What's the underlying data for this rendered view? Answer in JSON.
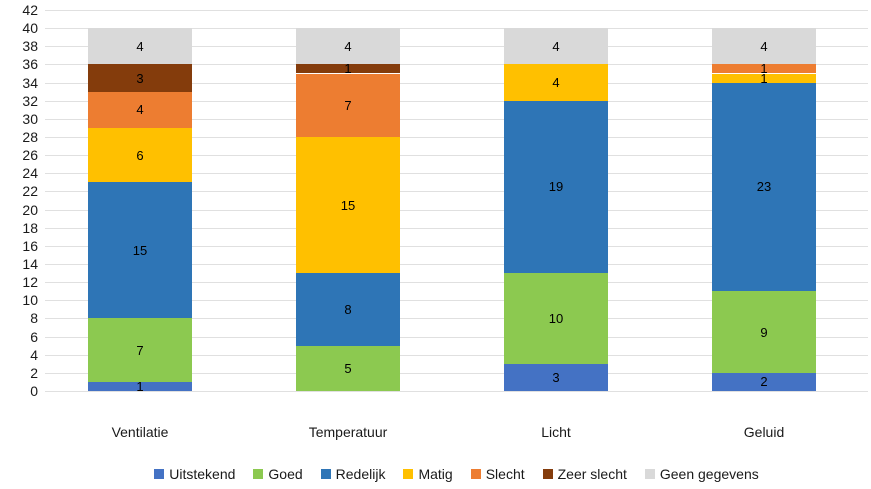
{
  "chart_data": {
    "type": "bar",
    "stacked": true,
    "title": "",
    "xlabel": "",
    "ylabel": "",
    "ylim": [
      0,
      42
    ],
    "yticks": [
      0,
      2,
      4,
      6,
      8,
      10,
      12,
      14,
      16,
      18,
      20,
      22,
      24,
      26,
      28,
      30,
      32,
      34,
      36,
      38,
      40,
      42
    ],
    "grid": true,
    "legend_position": "bottom",
    "categories": [
      "Ventilatie",
      "Temperatuur",
      "Licht",
      "Geluid"
    ],
    "series": [
      {
        "name": "Uitstekend",
        "color": "#4472C4",
        "values": [
          1,
          0,
          3,
          2
        ]
      },
      {
        "name": "Goed",
        "color": "#8CC950",
        "values": [
          7,
          5,
          10,
          9
        ]
      },
      {
        "name": "Redelijk",
        "color": "#2E75B6",
        "values": [
          15,
          8,
          19,
          23
        ]
      },
      {
        "name": "Matig",
        "color": "#FFC000",
        "values": [
          6,
          15,
          4,
          1
        ]
      },
      {
        "name": "Slecht",
        "color": "#ED7D31",
        "values": [
          4,
          7,
          0,
          1
        ]
      },
      {
        "name": "Zeer slecht",
        "color": "#843C0C",
        "values": [
          3,
          1,
          0,
          0
        ]
      },
      {
        "name": "Geen gegevens",
        "color": "#D9D9D9",
        "values": [
          4,
          4,
          4,
          4
        ]
      }
    ],
    "colors": {
      "gridline": "#e0e0e0",
      "axis_text": "#1a1a1a",
      "background": "#ffffff",
      "data_label": "#000000"
    }
  }
}
